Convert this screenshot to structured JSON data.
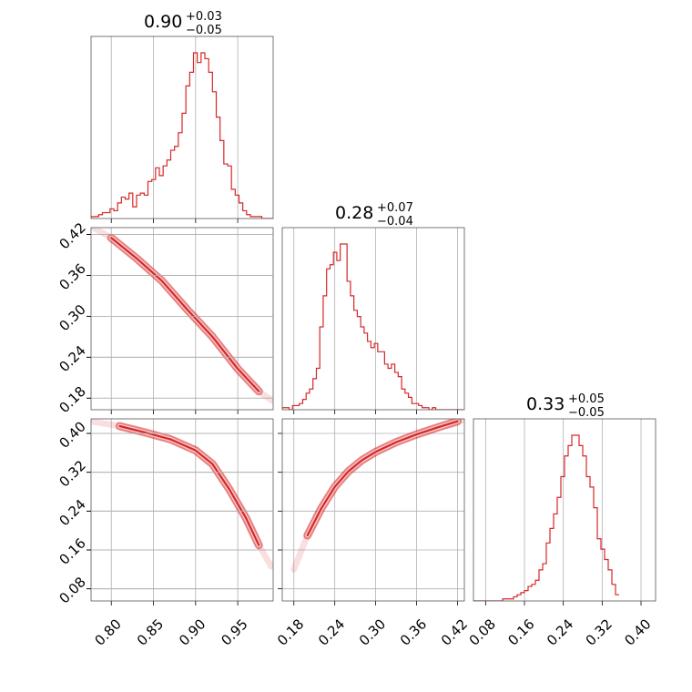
{
  "chart_data": {
    "type": "corner",
    "line_color": "#d62728",
    "grid": true,
    "parameters": [
      {
        "median": "0.90",
        "plus": "+0.03",
        "minus": "−0.05",
        "range": [
          0.776,
          0.992
        ],
        "ticks": [
          0.8,
          0.85,
          0.9,
          0.95
        ],
        "tick_labels": [
          "0.80",
          "0.85",
          "0.90",
          "0.95"
        ]
      },
      {
        "median": "0.28",
        "plus": "+0.07",
        "minus": "−0.04",
        "range": [
          0.163,
          0.43
        ],
        "ticks": [
          0.18,
          0.24,
          0.3,
          0.36,
          0.42
        ],
        "tick_labels": [
          "0.18",
          "0.24",
          "0.30",
          "0.36",
          "0.42"
        ]
      },
      {
        "median": "0.33",
        "plus": "+0.05",
        "minus": "−0.05",
        "range": [
          0.055,
          0.43
        ],
        "ticks": [
          0.08,
          0.16,
          0.24,
          0.32,
          0.4
        ],
        "tick_labels": [
          "0.08",
          "0.16",
          "0.24",
          "0.32",
          "0.40"
        ]
      }
    ],
    "histograms": [
      {
        "param": 0,
        "x_start": 0.776,
        "bin_width": 0.0045,
        "counts": [
          1,
          1,
          2,
          3,
          3,
          5,
          4,
          8,
          11,
          10,
          13,
          6,
          12,
          13,
          12,
          19,
          20,
          26,
          22,
          27,
          30,
          35,
          37,
          44,
          54,
          68,
          75,
          85,
          80,
          85,
          82,
          75,
          65,
          52,
          40,
          28,
          27,
          15,
          12,
          8,
          4,
          2,
          1,
          1,
          1,
          0,
          0,
          0
        ]
      },
      {
        "param": 1,
        "x_start": 0.163,
        "bin_width": 0.005,
        "counts": [
          1,
          1,
          0,
          2,
          2,
          3,
          5,
          8,
          10,
          15,
          20,
          40,
          55,
          68,
          70,
          76,
          72,
          80,
          80,
          62,
          55,
          48,
          45,
          40,
          37,
          33,
          30,
          32,
          28,
          28,
          22,
          20,
          22,
          18,
          16,
          10,
          8,
          6,
          3,
          3,
          2,
          1,
          1,
          0,
          1,
          0,
          0,
          0,
          0,
          0,
          0,
          0,
          0
        ]
      },
      {
        "param": 2,
        "x_start": 0.055,
        "bin_width": 0.0075,
        "counts": [
          0,
          0,
          0,
          0,
          0,
          0,
          0,
          0,
          1,
          1,
          1,
          2,
          3,
          4,
          5,
          7,
          8,
          10,
          15,
          18,
          28,
          35,
          42,
          50,
          60,
          70,
          75,
          80,
          80,
          75,
          70,
          60,
          55,
          45,
          30,
          25,
          20,
          15,
          8,
          3
        ]
      }
    ],
    "panels_2d": [
      {
        "x_param": 0,
        "y_param": 1,
        "curve": [
          [
            0.776,
            0.432
          ],
          [
            0.8,
            0.415
          ],
          [
            0.83,
            0.385
          ],
          [
            0.86,
            0.352
          ],
          [
            0.89,
            0.31
          ],
          [
            0.92,
            0.27
          ],
          [
            0.95,
            0.223
          ],
          [
            0.975,
            0.19
          ],
          [
            0.99,
            0.177
          ]
        ]
      },
      {
        "x_param": 0,
        "y_param": 2,
        "curve": [
          [
            0.776,
            0.425
          ],
          [
            0.81,
            0.415
          ],
          [
            0.84,
            0.402
          ],
          [
            0.87,
            0.388
          ],
          [
            0.9,
            0.365
          ],
          [
            0.92,
            0.337
          ],
          [
            0.94,
            0.285
          ],
          [
            0.96,
            0.225
          ],
          [
            0.975,
            0.17
          ],
          [
            0.99,
            0.125
          ]
        ]
      },
      {
        "x_param": 1,
        "y_param": 2,
        "curve": [
          [
            0.18,
            0.12
          ],
          [
            0.2,
            0.19
          ],
          [
            0.22,
            0.245
          ],
          [
            0.24,
            0.29
          ],
          [
            0.26,
            0.322
          ],
          [
            0.28,
            0.345
          ],
          [
            0.3,
            0.362
          ],
          [
            0.33,
            0.382
          ],
          [
            0.36,
            0.398
          ],
          [
            0.39,
            0.412
          ],
          [
            0.42,
            0.425
          ],
          [
            0.43,
            0.428
          ]
        ]
      }
    ]
  }
}
